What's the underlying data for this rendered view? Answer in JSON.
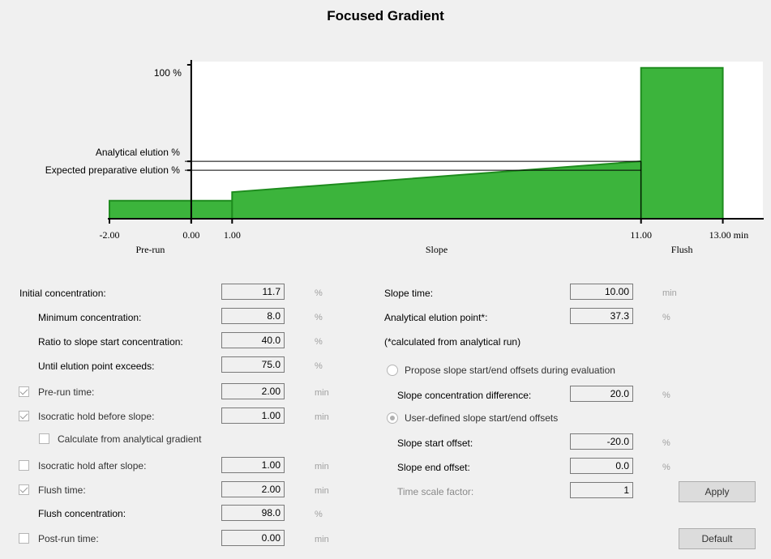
{
  "title": "Focused Gradient",
  "colors": {
    "fill": "#3cb43c",
    "stroke": "#1e8c1e",
    "panel": "#f0f0f0",
    "plot": "#ffffff"
  },
  "chart_data": {
    "type": "area",
    "title": "Focused Gradient",
    "x_min": -2.0,
    "x_max": 14.0,
    "y_max": 100,
    "x_ticks": [
      -2.0,
      0.0,
      1.0,
      11.0,
      13.0
    ],
    "x_tick_labels": [
      "-2.00",
      "0.00",
      "1.00",
      "11.00",
      "13.00 min"
    ],
    "y_labels": {
      "full": "100 %",
      "analytical": "Analytical elution %",
      "expected": "Expected preparative elution %"
    },
    "analytical_level": 37.3,
    "expected_level": 31.5,
    "phases": [
      {
        "name": "Pre-run",
        "x": -1.0
      },
      {
        "name": "Slope",
        "x": 6.0
      },
      {
        "name": "Flush",
        "x": 12.0
      }
    ],
    "series": [
      {
        "name": "Pre-run",
        "x": [
          -2.0,
          1.0
        ],
        "y": [
          11.7,
          11.7
        ]
      },
      {
        "name": "Slope",
        "x": [
          1.0,
          11.0
        ],
        "y": [
          17.3,
          37.3
        ]
      },
      {
        "name": "Flush",
        "x": [
          11.0,
          13.0
        ],
        "y": [
          98.0,
          98.0
        ]
      }
    ]
  },
  "left": {
    "initial_conc": {
      "label": "Initial concentration:",
      "value": "11.7",
      "unit": "%"
    },
    "min_conc": {
      "label": "Minimum concentration:",
      "value": "8.0",
      "unit": "%"
    },
    "ratio": {
      "label": "Ratio to slope start concentration:",
      "value": "40.0",
      "unit": "%"
    },
    "until": {
      "label": "Until elution point exceeds:",
      "value": "75.0",
      "unit": "%"
    },
    "prerun": {
      "label": "Pre-run time:",
      "value": "2.00",
      "unit": "min",
      "checked": true
    },
    "iso_before": {
      "label": "Isocratic hold before slope:",
      "value": "1.00",
      "unit": "min",
      "checked": true
    },
    "calc_analytical": {
      "label": "Calculate from analytical gradient",
      "checked": false
    },
    "iso_after": {
      "label": "Isocratic hold after slope:",
      "value": "1.00",
      "unit": "min",
      "checked": false
    },
    "flush_time": {
      "label": "Flush time:",
      "value": "2.00",
      "unit": "min",
      "checked": true
    },
    "flush_conc": {
      "label": "Flush concentration:",
      "value": "98.0",
      "unit": "%"
    },
    "postrun": {
      "label": "Post-run time:",
      "value": "0.00",
      "unit": "min",
      "checked": false
    }
  },
  "right": {
    "slope_time": {
      "label": "Slope time:",
      "value": "10.00",
      "unit": "min"
    },
    "analytical_point": {
      "label": "Analytical elution point*:",
      "value": "37.3",
      "unit": "%"
    },
    "note": "(*calculated from analytical run)",
    "propose": {
      "label": "Propose slope start/end offsets during evaluation",
      "selected": false
    },
    "slope_diff": {
      "label": "Slope concentration difference:",
      "value": "20.0",
      "unit": "%"
    },
    "user_defined": {
      "label": "User-defined slope start/end offsets",
      "selected": true
    },
    "start_offset": {
      "label": "Slope start offset:",
      "value": "-20.0",
      "unit": "%"
    },
    "end_offset": {
      "label": "Slope end offset:",
      "value": "0.0",
      "unit": "%"
    },
    "time_scale": {
      "label": "Time scale factor:",
      "value": "1"
    }
  },
  "buttons": {
    "apply": "Apply",
    "default": "Default"
  }
}
